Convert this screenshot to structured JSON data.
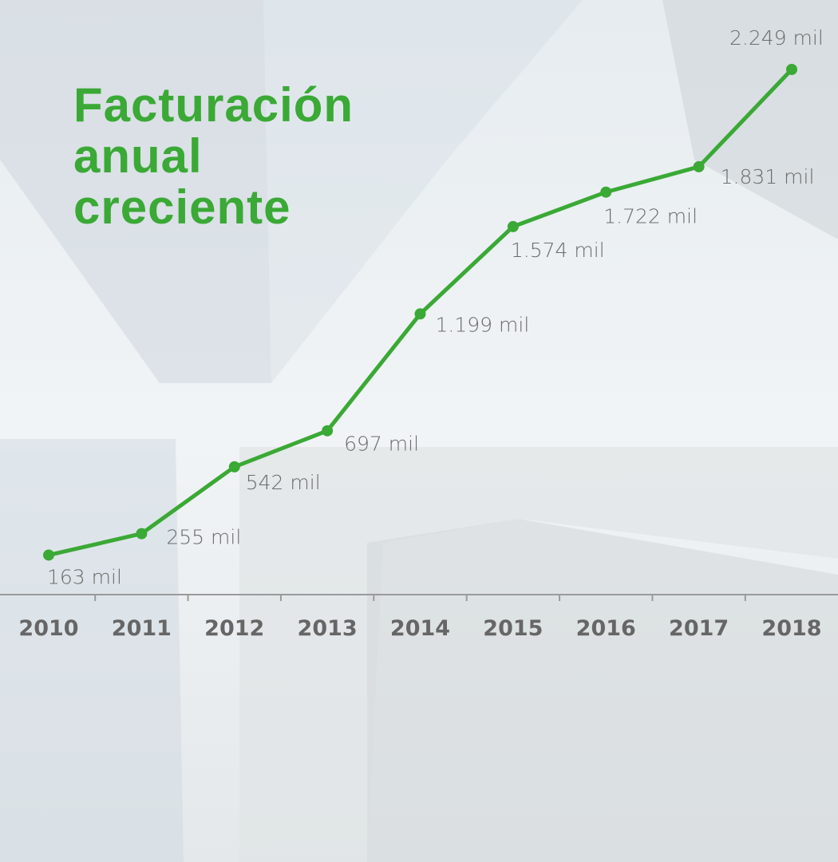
{
  "chart_data": {
    "type": "line",
    "title": "Facturación anual creciente",
    "categories": [
      "2010",
      "2011",
      "2012",
      "2013",
      "2014",
      "2015",
      "2016",
      "2017",
      "2018"
    ],
    "series": [
      {
        "color": "#3aa935",
        "values": [
          163,
          255,
          542,
          697,
          1199,
          1574,
          1722,
          1831,
          2249
        ],
        "value_labels": [
          "163 mil",
          "255 mil",
          "542 mil",
          "697 mil",
          "1.199 mil",
          "1.574 mil",
          "1.722 mil",
          "1.831 mil",
          "2.249 mil"
        ]
      }
    ]
  }
}
